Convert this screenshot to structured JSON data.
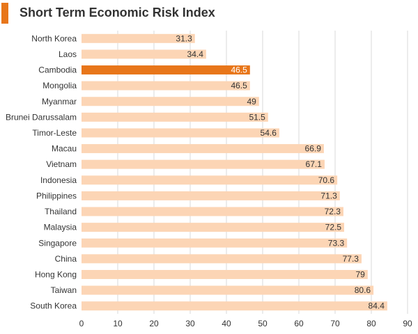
{
  "chart_data": {
    "type": "bar",
    "orientation": "horizontal",
    "title": "Short Term Economic Risk Index",
    "categories": [
      "North Korea",
      "Laos",
      "Cambodia",
      "Mongolia",
      "Myanmar",
      "Brunei Darussalam",
      "Timor-Leste",
      "Macau",
      "Vietnam",
      "Indonesia",
      "Philippines",
      "Thailand",
      "Malaysia",
      "Singapore",
      "China",
      "Hong Kong",
      "Taiwan",
      "South Korea"
    ],
    "values": [
      31.3,
      34.4,
      46.5,
      46.5,
      49,
      51.5,
      54.6,
      66.9,
      67.1,
      70.6,
      71.3,
      72.3,
      72.5,
      73.3,
      77.3,
      79,
      80.6,
      84.4
    ],
    "value_labels": [
      "31.3",
      "34.4",
      "46.5",
      "46.5",
      "49",
      "51.5",
      "54.6",
      "66.9",
      "67.1",
      "70.6",
      "71.3",
      "72.3",
      "72.5",
      "73.3",
      "77.3",
      "79",
      "80.6",
      "84.4"
    ],
    "highlight": "Cambodia",
    "xlim": [
      0,
      90
    ],
    "xticks": [
      0,
      10,
      20,
      30,
      40,
      50,
      60,
      70,
      80,
      90
    ],
    "grid": true,
    "xlabel": "",
    "ylabel": "",
    "colors": {
      "bar": "#fcd5b5",
      "highlight_bar": "#e8761a",
      "accent": "#e8761a",
      "grid": "#d9d9d9",
      "text": "#333333",
      "highlight_text": "#ffffff"
    }
  }
}
